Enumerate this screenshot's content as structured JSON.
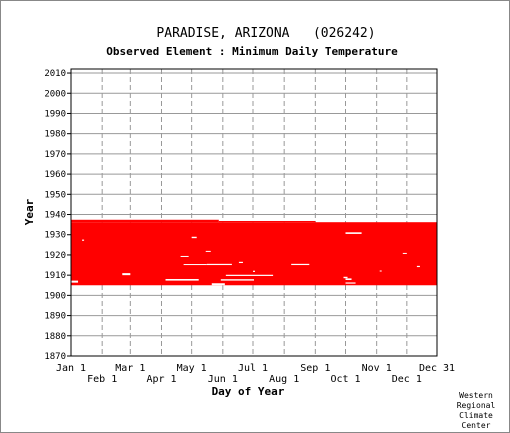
{
  "chart_data": {
    "type": "heatmap",
    "title": "PARADISE, ARIZONA   (026242)",
    "subtitle": "Observed Element : Minimum Daily Temperature",
    "xlabel": "Day of Year",
    "ylabel": "Year",
    "x_upper_ticks": [
      {
        "label": "Jan 1",
        "day": 1
      },
      {
        "label": "Mar 1",
        "day": 60
      },
      {
        "label": "May 1",
        "day": 121
      },
      {
        "label": "Jul 1",
        "day": 182
      },
      {
        "label": "Sep 1",
        "day": 244
      },
      {
        "label": "Nov 1",
        "day": 305
      },
      {
        "label": "Dec 31",
        "day": 365
      }
    ],
    "x_lower_ticks": [
      {
        "label": "Feb 1",
        "day": 32
      },
      {
        "label": "Apr 1",
        "day": 91
      },
      {
        "label": "Jun 1",
        "day": 152
      },
      {
        "label": "Aug 1",
        "day": 213
      },
      {
        "label": "Oct 1",
        "day": 274
      },
      {
        "label": "Dec 1",
        "day": 335
      }
    ],
    "xlim": [
      1,
      365
    ],
    "ylim": [
      1870,
      2012
    ],
    "y_ticks": [
      1870,
      1880,
      1890,
      1900,
      1910,
      1920,
      1930,
      1940,
      1950,
      1960,
      1970,
      1980,
      1990,
      2000,
      2010
    ],
    "grid": true,
    "data_color": "#ff0000",
    "observed_period": {
      "start_year": 1905,
      "end_year": 1937
    },
    "observed_blocks": [
      {
        "day_start": 1,
        "day_end": 365,
        "year_start": 1905,
        "year_end": 1936.2
      },
      {
        "day_start": 1,
        "day_end": 148,
        "year_start": 1936.2,
        "year_end": 1937.4
      },
      {
        "day_start": 148,
        "day_end": 244,
        "year_start": 1936.2,
        "year_end": 1936.8
      }
    ],
    "missing_segments": [
      {
        "day_start": 1,
        "day_end": 8,
        "year_start": 1906.3,
        "year_end": 1907.3
      },
      {
        "day_start": 12,
        "day_end": 14,
        "year_start": 1927,
        "year_end": 1927.6
      },
      {
        "day_start": 52,
        "day_end": 60,
        "year_start": 1910,
        "year_end": 1911
      },
      {
        "day_start": 121,
        "day_end": 126,
        "year_start": 1928.3,
        "year_end": 1929
      },
      {
        "day_start": 113,
        "day_end": 136,
        "year_start": 1915,
        "year_end": 1915.5
      },
      {
        "day_start": 136,
        "day_end": 161,
        "year_start": 1915,
        "year_end": 1915.6
      },
      {
        "day_start": 135,
        "day_end": 140,
        "year_start": 1921.5,
        "year_end": 1922
      },
      {
        "day_start": 110,
        "day_end": 118,
        "year_start": 1919,
        "year_end": 1919.5
      },
      {
        "day_start": 95,
        "day_end": 128,
        "year_start": 1907.3,
        "year_end": 1908.1
      },
      {
        "day_start": 141,
        "day_end": 154,
        "year_start": 1905,
        "year_end": 1906
      },
      {
        "day_start": 155,
        "day_end": 202,
        "year_start": 1909.6,
        "year_end": 1910.2
      },
      {
        "day_start": 150,
        "day_end": 183,
        "year_start": 1907.3,
        "year_end": 1908
      },
      {
        "day_start": 168,
        "day_end": 172,
        "year_start": 1916,
        "year_end": 1916.6
      },
      {
        "day_start": 182,
        "day_end": 184,
        "year_start": 1911.6,
        "year_end": 1912.2
      },
      {
        "day_start": 220,
        "day_end": 238,
        "year_start": 1915,
        "year_end": 1915.6
      },
      {
        "day_start": 274,
        "day_end": 290,
        "year_start": 1930.4,
        "year_end": 1931.2
      },
      {
        "day_start": 274,
        "day_end": 280,
        "year_start": 1907.6,
        "year_end": 1908.4
      },
      {
        "day_start": 274,
        "day_end": 284,
        "year_start": 1905.8,
        "year_end": 1906.4
      },
      {
        "day_start": 272,
        "day_end": 276,
        "year_start": 1908.5,
        "year_end": 1909.2
      },
      {
        "day_start": 308,
        "day_end": 310,
        "year_start": 1911.8,
        "year_end": 1912.3
      },
      {
        "day_start": 331,
        "day_end": 335,
        "year_start": 1920.5,
        "year_end": 1921
      },
      {
        "day_start": 345,
        "day_end": 348,
        "year_start": 1914,
        "year_end": 1914.6
      }
    ]
  },
  "credit": [
    "Western",
    "Regional",
    "Climate",
    "Center"
  ]
}
